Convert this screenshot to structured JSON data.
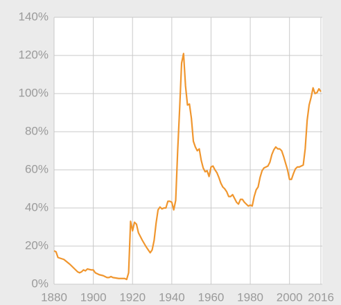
{
  "chart_data": {
    "type": "line",
    "x": [
      1880,
      1881,
      1882,
      1885,
      1888,
      1890,
      1892,
      1893,
      1894,
      1895,
      1896,
      1897,
      1899,
      1900,
      1901,
      1903,
      1905,
      1907,
      1908,
      1909,
      1910,
      1913,
      1916,
      1917,
      1918,
      1919,
      1920,
      1921,
      1922,
      1923,
      1925,
      1927,
      1929,
      1930,
      1931,
      1932,
      1933,
      1934,
      1935,
      1936,
      1937,
      1938,
      1939,
      1940,
      1941,
      1942,
      1943,
      1944,
      1945,
      1946,
      1947,
      1948,
      1949,
      1950,
      1951,
      1952,
      1953,
      1954,
      1955,
      1956,
      1957,
      1958,
      1959,
      1960,
      1961,
      1962,
      1963,
      1964,
      1965,
      1966,
      1967,
      1968,
      1969,
      1970,
      1971,
      1972,
      1973,
      1974,
      1975,
      1976,
      1977,
      1978,
      1979,
      1980,
      1981,
      1982,
      1983,
      1984,
      1985,
      1986,
      1987,
      1988,
      1989,
      1990,
      1991,
      1992,
      1993,
      1994,
      1995,
      1996,
      1997,
      1998,
      1999,
      2000,
      2001,
      2002,
      2003,
      2004,
      2005,
      2006,
      2007,
      2008,
      2009,
      2010,
      2011,
      2012,
      2013,
      2014,
      2015,
      2016
    ],
    "series": [
      {
        "color": "#f0962e",
        "values": [
          17.5,
          17,
          14,
          13,
          10.5,
          8.5,
          6.5,
          6,
          6.5,
          7.5,
          7,
          8,
          7.5,
          7.5,
          6,
          5,
          4.5,
          3.5,
          3.5,
          4,
          3.5,
          3,
          3,
          2.5,
          6,
          33,
          28,
          32.5,
          31.5,
          27,
          23,
          19.5,
          16.5,
          18,
          23,
          32,
          39,
          40.5,
          39.5,
          40,
          40,
          43.5,
          43.5,
          43,
          39,
          44,
          70,
          92,
          116,
          121,
          104,
          94,
          94.5,
          87,
          75,
          72,
          70,
          71,
          65,
          61,
          59,
          59.5,
          56.5,
          61.5,
          62,
          60,
          58.5,
          56,
          53,
          51,
          50,
          48.5,
          46,
          46,
          47,
          45,
          43,
          42,
          44.5,
          44.5,
          43,
          42,
          41,
          41.5,
          41,
          46,
          49.5,
          51,
          56,
          59.5,
          61,
          61.5,
          62,
          64,
          68,
          70.5,
          72,
          71,
          71,
          70,
          67,
          63.5,
          60,
          55,
          55,
          58,
          60.5,
          61.5,
          61.5,
          62,
          62.5,
          71,
          86,
          94,
          98,
          103,
          100,
          100.5,
          102.5,
          101
        ]
      }
    ],
    "xlim": [
      1880,
      2016
    ],
    "ylim": [
      0,
      140
    ],
    "xticks": [
      1880,
      1900,
      1920,
      1940,
      1960,
      1980,
      2000,
      2016
    ],
    "yticks": [
      {
        "value": 0,
        "label": "0%"
      },
      {
        "value": 20,
        "label": "20%"
      },
      {
        "value": 40,
        "label": "40%"
      },
      {
        "value": 60,
        "label": "60%"
      },
      {
        "value": 80,
        "label": "80%"
      },
      {
        "value": 100,
        "label": "100%"
      },
      {
        "value": 120,
        "label": "120%"
      },
      {
        "value": 140,
        "label": "140%"
      }
    ],
    "grid": true
  }
}
